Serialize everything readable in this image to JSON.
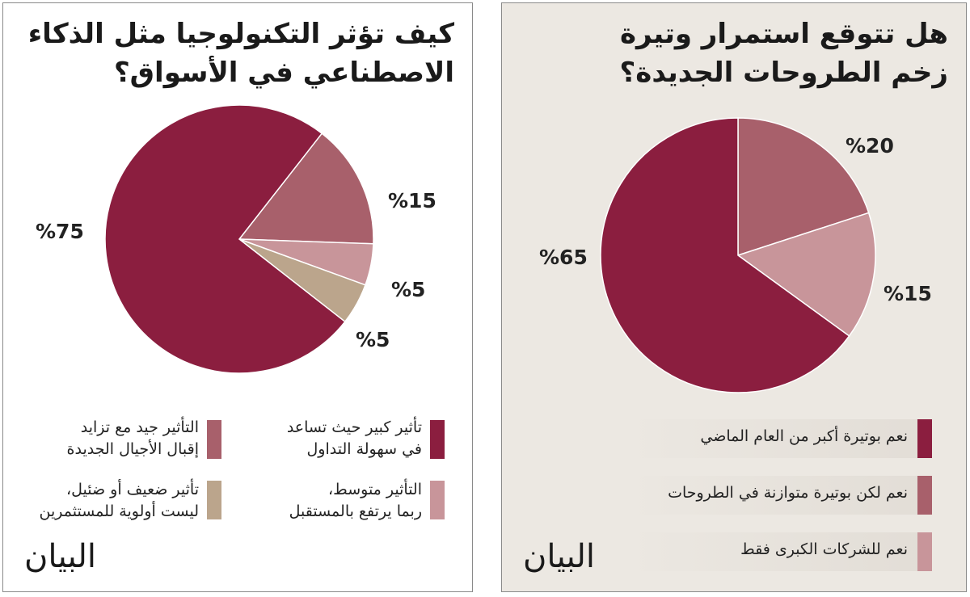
{
  "colors": {
    "dark": "#8b1e3f",
    "mid": "#a8606b",
    "light": "#c8959a",
    "tan": "#bba58c"
  },
  "logo": "البيان",
  "chart_data": [
    {
      "type": "pie",
      "title": "كيف تؤثر التكنولوجيا مثل الذكاء الاصطناعي في الأسواق؟",
      "slices": [
        {
          "name": "تأثير كبير حيث تساعد في سهولة التداول",
          "value": 75,
          "label": "%75",
          "color": "#8b1e3f"
        },
        {
          "name": "التأثير جيد مع تزايد إقبال الأجيال الجديدة",
          "value": 15,
          "label": "%15",
          "color": "#a8606b"
        },
        {
          "name": "التأثير متوسط، ربما يرتفع بالمستقبل",
          "value": 5,
          "label": "%5",
          "color": "#c8959a"
        },
        {
          "name": "تأثير ضعيف أو ضئيل، ليست أولوية للمستثمرين",
          "value": 5,
          "label": "%5",
          "color": "#bba58c"
        }
      ],
      "legend_lines": [
        [
          "تأثير كبير حيث تساعد",
          "في سهولة التداول"
        ],
        [
          "التأثير جيد مع تزايد",
          "إقبال الأجيال الجديدة"
        ],
        [
          "التأثير متوسط،",
          "ربما يرتفع بالمستقبل"
        ],
        [
          "تأثير ضعيف أو ضئيل،",
          "ليست أولوية للمستثمرين"
        ]
      ],
      "legend": "bottom"
    },
    {
      "type": "pie",
      "title": "هل تتوقع استمرار وتيرة زخم الطروحات الجديدة؟",
      "slices": [
        {
          "name": "نعم بوتيرة أكبر من العام الماضي",
          "value": 65,
          "label": "%65",
          "color": "#8b1e3f"
        },
        {
          "name": "نعم لكن بوتيرة متوازنة في الطروحات",
          "value": 20,
          "label": "%20",
          "color": "#a8606b"
        },
        {
          "name": "نعم للشركات الكبرى فقط",
          "value": 15,
          "label": "%15",
          "color": "#c8959a"
        }
      ],
      "legend": "bottom"
    }
  ]
}
